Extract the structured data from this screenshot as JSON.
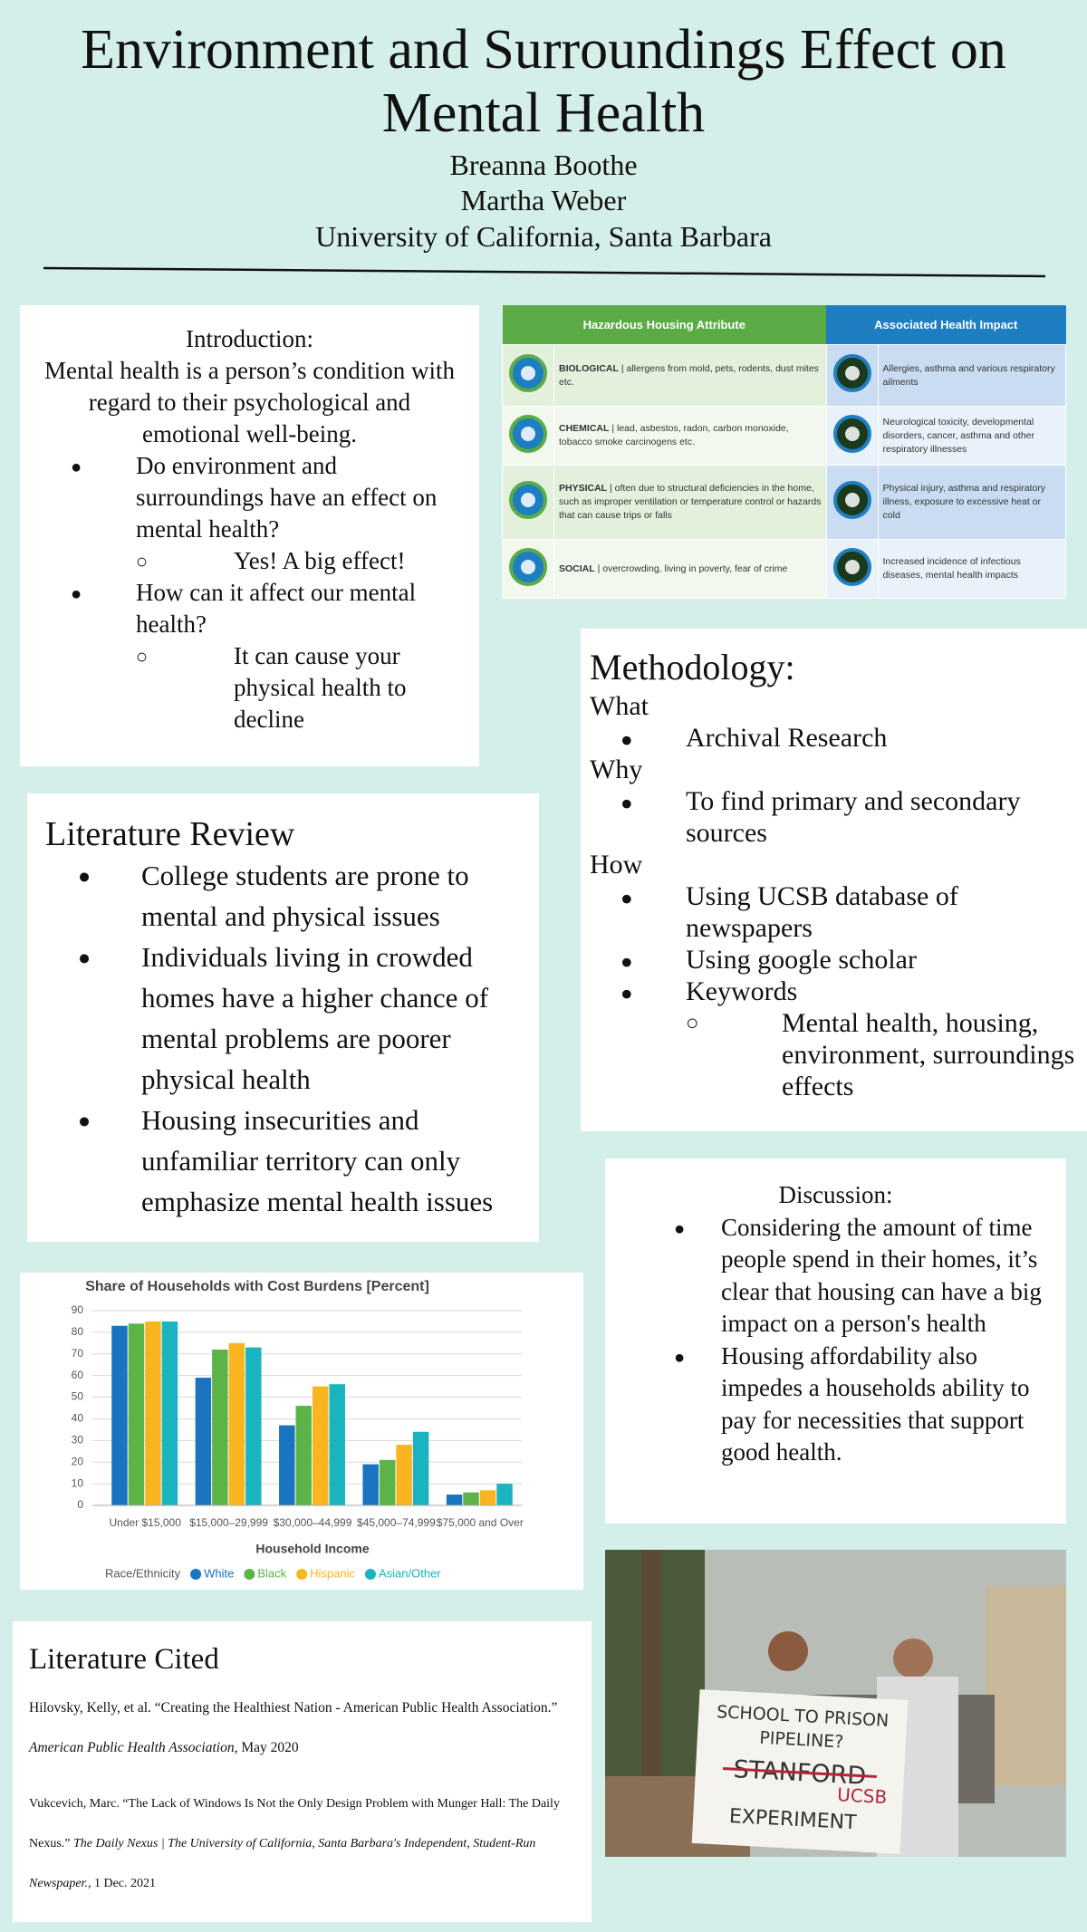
{
  "header": {
    "title": "Environment and Surroundings Effect on Mental Health",
    "authors": [
      "Breanna Boothe",
      "Martha Weber"
    ],
    "affiliation": "University of California, Santa Barbara"
  },
  "introduction": {
    "heading": "Introduction:",
    "definition": "Mental health is a person’s condition with regard to their psychological and emotional well-being.",
    "items": [
      {
        "question": "Do environment and surroundings have an effect on mental health?",
        "answer": "Yes! A big effect!"
      },
      {
        "question": "How can it affect our mental health?",
        "answer": "It can cause your physical health to decline"
      }
    ]
  },
  "hazard_table": {
    "headers": [
      "Hazardous Housing Attribute",
      "Associated Health Impact"
    ],
    "rows": [
      {
        "attribute": "BIOLOGICAL",
        "description": "| allergens from mold, pets, rodents, dust mites etc.",
        "impact": "Allergies, asthma and various respiratory ailments"
      },
      {
        "attribute": "CHEMICAL",
        "description": "| lead, asbestos, radon, carbon monoxide, tobacco smoke carcinogens etc.",
        "impact": "Neurological toxicity, developmental disorders, cancer, asthma and other respiratory illnesses"
      },
      {
        "attribute": "PHYSICAL",
        "description": "| often due to structural deficiencies in the home, such as improper ventilation or temperature control or hazards that can cause trips or falls",
        "impact": "Physical injury, asthma and respiratory illness, exposure to excessive heat or cold"
      },
      {
        "attribute": "SOCIAL",
        "description": "| overcrowding, living in poverty, fear of crime",
        "impact": "Increased incidence of infectious diseases, mental health impacts"
      }
    ]
  },
  "methodology": {
    "heading": "Methodology:",
    "what": {
      "label": "What",
      "items": [
        "Archival Research"
      ]
    },
    "why": {
      "label": "Why",
      "items": [
        "To find primary and secondary sources"
      ]
    },
    "how": {
      "label": "How",
      "items": [
        "Using UCSB  database of newspapers",
        "Using google scholar",
        "Keywords"
      ],
      "subitems": [
        "Mental health, housing, environment, surroundings effects"
      ]
    }
  },
  "literature_review": {
    "heading": "Literature Review",
    "items": [
      "College students are prone to mental and physical issues",
      "Individuals living in crowded homes have a higher chance of mental problems are poorer physical health",
      "Housing insecurities and unfamiliar territory can only emphasize mental health issues"
    ]
  },
  "discussion": {
    "heading": "Discussion:",
    "items": [
      "Considering the amount of time people spend in their homes, it’s clear that housing can have a big impact on a person's health",
      "Housing affordability also impedes a households ability to pay for necessities that support good health."
    ]
  },
  "chart_data": {
    "type": "bar",
    "title": "Share of Households with Cost Burdens [Percent]",
    "x_label": "Household Income",
    "legend_title": "Race/Ethnicity",
    "categories": [
      "Under $15,000",
      "$15,000–29,999",
      "$30,000–44,999",
      "$45,000–74,999",
      "$75,000 and Over"
    ],
    "series": [
      {
        "name": "White",
        "color": "#1a74c0",
        "values": [
          83,
          59,
          37,
          19,
          5
        ]
      },
      {
        "name": "Black",
        "color": "#5cb449",
        "values": [
          84,
          72,
          46,
          21,
          6
        ]
      },
      {
        "name": "Hispanic",
        "color": "#f9b51f",
        "values": [
          85,
          75,
          55,
          28,
          7
        ]
      },
      {
        "name": "Asian/Other",
        "color": "#1ab4c0",
        "values": [
          85,
          73,
          56,
          34,
          10
        ]
      }
    ],
    "ylim": [
      0,
      90
    ],
    "yticks": [
      0,
      10,
      20,
      30,
      40,
      50,
      60,
      70,
      80,
      90
    ],
    "grid": true
  },
  "literature_cited": {
    "heading": "Literature Cited",
    "citations": [
      {
        "text": "Hilovsky, Kelly, et al. “Creating the Healthiest Nation - American Public Health Association.”",
        "source": "American Public Health Association",
        "date": ", May 2020"
      },
      {
        "text": "Vukcevich, Marc. “The Lack of Windows Is Not the Only Design Problem with Munger Hall: The Daily Nexus.”",
        "source": "The Daily Nexus | The University of California, Santa Barbara's Independent, Student-Run Newspaper.",
        "date": ", 1 Dec. 2021"
      }
    ]
  },
  "photo": {
    "sign": [
      "SCHOOL TO PRISON",
      "PIPELINE?",
      "STANFORD",
      "UCSB",
      "EXPERIMENT"
    ]
  }
}
